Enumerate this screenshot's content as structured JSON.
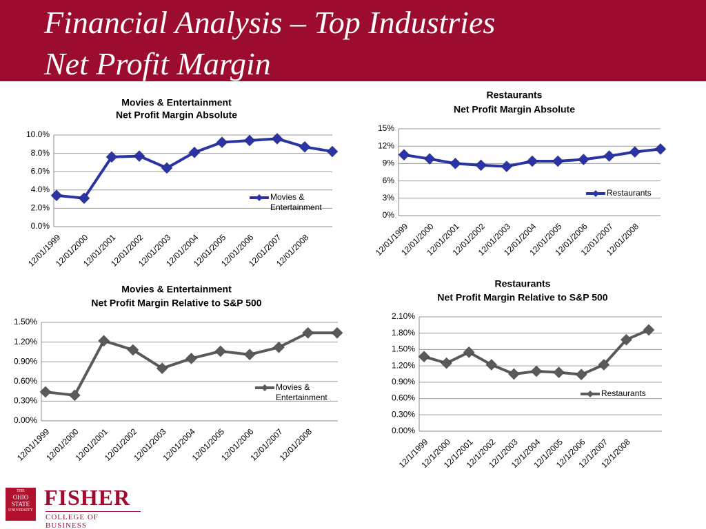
{
  "header": {
    "title": [
      "Financial Analysis – Top Industries",
      "Net Profit Margin"
    ]
  },
  "logo": {
    "university": [
      "THE",
      "OHIO",
      "STATE",
      "UNIVERSITY"
    ],
    "school": "FISHER",
    "college": "COLLEGE OF BUSINESS"
  },
  "chart_data": [
    {
      "type": "line",
      "title": [
        "Movies & Entertainment",
        "Net Profit Margin Absolute"
      ],
      "categories": [
        "12/01/1999",
        "12/01/2000",
        "12/01/2001",
        "12/01/2002",
        "12/01/2003",
        "12/01/2004",
        "12/01/2005",
        "12/01/2006",
        "12/01/2007",
        "12/01/2008",
        null
      ],
      "series": [
        {
          "name": "Movies & Entertainment",
          "color": "#2b34a6",
          "values": [
            3.4,
            3.1,
            7.6,
            7.7,
            6.4,
            8.1,
            9.2,
            9.4,
            9.6,
            8.7,
            8.2
          ]
        }
      ],
      "ylim": [
        0,
        10
      ],
      "yticks": [
        {
          "value": 0,
          "label": "0.0%"
        },
        {
          "value": 2,
          "label": "2.0%"
        },
        {
          "value": 4,
          "label": "4.0%"
        },
        {
          "value": 6,
          "label": "6.0%"
        },
        {
          "value": 8,
          "label": "8.0%"
        },
        {
          "value": 10,
          "label": "10.0%"
        }
      ],
      "grid": true,
      "legend": "right"
    },
    {
      "type": "line",
      "title": [
        "Restaurants",
        "Net Profit Margin Absolute"
      ],
      "categories": [
        "12/01/1999",
        "12/01/2000",
        "12/01/2001",
        "12/01/2002",
        "12/01/2003",
        "12/01/2004",
        "12/01/2005",
        "12/01/2006",
        "12/01/2007",
        "12/01/2008",
        null
      ],
      "series": [
        {
          "name": "Restaurants",
          "color": "#2b34a6",
          "values": [
            10.5,
            9.8,
            9.0,
            8.7,
            8.5,
            9.4,
            9.4,
            9.7,
            10.3,
            11.0,
            11.5
          ]
        }
      ],
      "ylim": [
        0,
        15
      ],
      "yticks": [
        {
          "value": 0,
          "label": "0%"
        },
        {
          "value": 3,
          "label": "3%"
        },
        {
          "value": 6,
          "label": "6%"
        },
        {
          "value": 9,
          "label": "9%"
        },
        {
          "value": 12,
          "label": "12%"
        },
        {
          "value": 15,
          "label": "15%"
        }
      ],
      "grid": true,
      "legend": "right"
    },
    {
      "type": "line",
      "title": [
        "Movies & Entertainment",
        "Net Profit Margin Relative to S&P 500"
      ],
      "categories": [
        "12/01/1999",
        "12/01/2000",
        "12/01/2001",
        "12/01/2002",
        "12/01/2003",
        "12/01/2004",
        "12/01/2005",
        "12/01/2006",
        "12/01/2007",
        "12/01/2008",
        null
      ],
      "series": [
        {
          "name": "Movies & Entertainment",
          "color": "#5a5a5a",
          "values": [
            0.44,
            0.39,
            1.22,
            1.08,
            0.8,
            0.95,
            1.06,
            1.01,
            1.12,
            1.34,
            1.34
          ]
        }
      ],
      "ylim": [
        0,
        1.5
      ],
      "yticks": [
        {
          "value": 0,
          "label": "0.00%"
        },
        {
          "value": 0.3,
          "label": "0.30%"
        },
        {
          "value": 0.6,
          "label": "0.60%"
        },
        {
          "value": 0.9,
          "label": "0.90%"
        },
        {
          "value": 1.2,
          "label": "1.20%"
        },
        {
          "value": 1.5,
          "label": "1.50%"
        }
      ],
      "grid": true,
      "legend": "right"
    },
    {
      "type": "line",
      "title": [
        "Restaurants",
        "Net Profit Margin Relative to S&P 500"
      ],
      "categories": [
        "12/1/1999",
        "12/1/2000",
        "12/1/2001",
        "12/1/2002",
        "12/1/2003",
        "12/1/2004",
        "12/1/2005",
        "12/1/2006",
        "12/1/2007",
        "12/1/2008",
        null
      ],
      "series": [
        {
          "name": "Restaurants",
          "color": "#5a5a5a",
          "values": [
            1.37,
            1.25,
            1.45,
            1.22,
            1.05,
            1.1,
            1.08,
            1.04,
            1.22,
            1.68,
            1.86
          ]
        }
      ],
      "ylim": [
        0,
        2.1
      ],
      "yticks": [
        {
          "value": 0,
          "label": "0.00%"
        },
        {
          "value": 0.3,
          "label": "0.30%"
        },
        {
          "value": 0.6,
          "label": "0.60%"
        },
        {
          "value": 0.9,
          "label": "0.90%"
        },
        {
          "value": 1.2,
          "label": "1.20%"
        },
        {
          "value": 1.5,
          "label": "1.50%"
        },
        {
          "value": 1.8,
          "label": "1.80%"
        },
        {
          "value": 2.1,
          "label": "2.10%"
        }
      ],
      "grid": true,
      "legend": "right"
    }
  ]
}
